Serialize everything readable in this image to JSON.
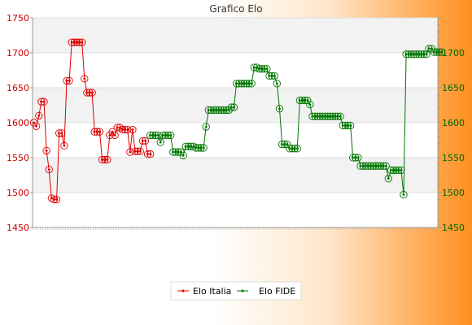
{
  "chart_data": {
    "type": "line",
    "title": "Grafico Elo",
    "ylim": [
      1450,
      1750
    ],
    "yticks": [
      1450,
      1500,
      1550,
      1600,
      1650,
      1700,
      1750
    ],
    "y2ticks": [
      1450,
      1500,
      1550,
      1600,
      1650,
      1700
    ],
    "grid": true,
    "legend_position": "bottom",
    "n_points": 160,
    "series": [
      {
        "name": "Elo Italia",
        "color": "#e00000",
        "start_index": 0,
        "values": [
          1600,
          1595,
          1610,
          1630,
          1630,
          1560,
          1533,
          1492,
          1490,
          1490,
          1585,
          1585,
          1567,
          1660,
          1660,
          1715,
          1715,
          1715,
          1715,
          1715,
          1663,
          1643,
          1643,
          1643,
          1587,
          1587,
          1587,
          1547,
          1547,
          1547,
          1582,
          1587,
          1582,
          1593,
          1593,
          1590,
          1590,
          1590,
          1558,
          1590,
          1559,
          1559,
          1559,
          1574,
          1574,
          1555,
          1555
        ]
      },
      {
        "name": "Elo FIDE",
        "color": "#007700",
        "start_index": 46,
        "values": [
          1582,
          1582,
          1582,
          1582,
          1572,
          1582,
          1582,
          1582,
          1582,
          1558,
          1558,
          1558,
          1558,
          1553,
          1566,
          1566,
          1566,
          1566,
          1564,
          1564,
          1564,
          1564,
          1594,
          1618,
          1618,
          1618,
          1618,
          1618,
          1618,
          1618,
          1618,
          1618,
          1622,
          1622,
          1656,
          1656,
          1656,
          1656,
          1656,
          1656,
          1656,
          1679,
          1679,
          1677,
          1677,
          1677,
          1677,
          1667,
          1667,
          1667,
          1656,
          1620,
          1569,
          1569,
          1569,
          1563,
          1563,
          1563,
          1563,
          1632,
          1632,
          1632,
          1632,
          1626,
          1609,
          1609,
          1609,
          1609,
          1609,
          1609,
          1609,
          1609,
          1609,
          1609,
          1609,
          1609,
          1596,
          1596,
          1596,
          1596,
          1550,
          1550,
          1550,
          1538,
          1538,
          1538,
          1538,
          1538,
          1538,
          1538,
          1538,
          1538,
          1538,
          1538,
          1520,
          1532,
          1532,
          1532,
          1532,
          1532,
          1497,
          1698,
          1698,
          1698,
          1698,
          1698,
          1698,
          1698,
          1698,
          1698,
          1706,
          1706,
          1701,
          1701,
          1701,
          1701
        ]
      }
    ]
  }
}
